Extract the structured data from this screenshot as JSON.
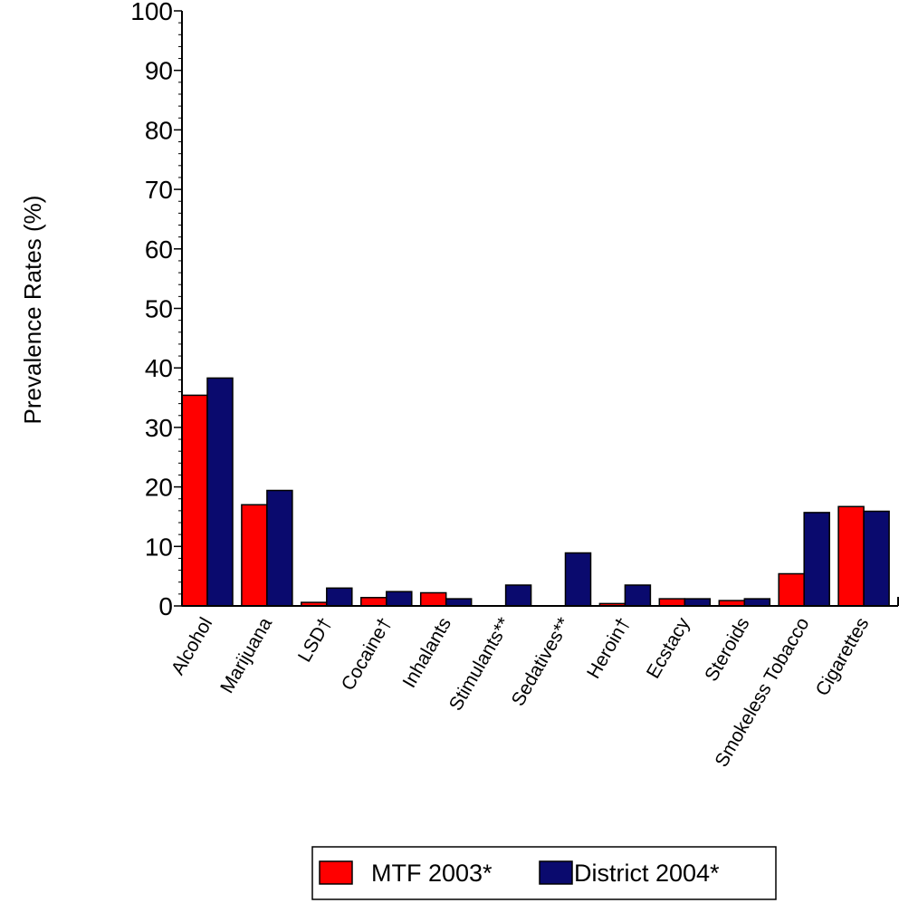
{
  "chart_data": {
    "type": "bar",
    "title": "",
    "xlabel": "",
    "ylabel": "Prevalence Rates (%)",
    "ylim": [
      0,
      100
    ],
    "yticks": [
      "0",
      "10",
      "20",
      "30",
      "40",
      "50",
      "60",
      "70",
      "80",
      "90",
      "100"
    ],
    "categories": [
      "Alcohol",
      "Marijuana",
      "LSD†",
      "Cocaine†",
      "Inhalants",
      "Stimulants**",
      "Sedatives**",
      "Heroin†",
      "Ecstacy",
      "Steroids",
      "Smokeless Tobacco",
      "Cigarettes"
    ],
    "series": [
      {
        "name": "MTF 2003*",
        "color": "#ff0000",
        "values": [
          35.4,
          17.0,
          0.6,
          1.4,
          2.2,
          0,
          0,
          0.4,
          1.2,
          0.9,
          5.4,
          16.7
        ]
      },
      {
        "name": "District 2004*",
        "color": "#0a0a6e",
        "values": [
          38.3,
          19.4,
          3.0,
          2.4,
          1.2,
          3.5,
          8.9,
          3.5,
          1.2,
          1.2,
          15.7,
          15.9
        ]
      }
    ],
    "grid": false,
    "legend": "bottom"
  }
}
